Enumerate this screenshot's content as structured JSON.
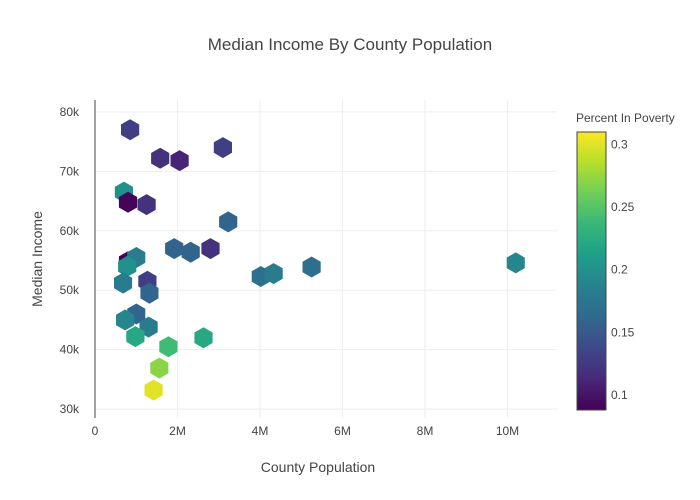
{
  "chart_data": {
    "type": "scatter",
    "title": "Median Income By County Population",
    "xlabel": "County Population",
    "ylabel": "Median Income",
    "xlim": [
      0,
      11200000
    ],
    "ylim": [
      28500,
      82000
    ],
    "x_ticks": [
      0,
      2000000,
      4000000,
      6000000,
      8000000,
      10000000
    ],
    "x_tick_labels": [
      "0",
      "2M",
      "4M",
      "6M",
      "8M",
      "10M"
    ],
    "y_ticks": [
      30000,
      40000,
      50000,
      60000,
      70000,
      80000
    ],
    "y_tick_labels": [
      "30k",
      "40k",
      "50k",
      "60k",
      "70k",
      "80k"
    ],
    "grid": true,
    "marker": "hexagon",
    "colorbar": {
      "title": "Percent In Poverty",
      "min": 0.088,
      "max": 0.31,
      "ticks": [
        0.1,
        0.15,
        0.2,
        0.25,
        0.3
      ],
      "tick_labels": [
        "0.1",
        "0.15",
        "0.2",
        "0.25",
        "0.3"
      ],
      "colorscale": [
        "#440154",
        "#482878",
        "#3e4989",
        "#31688e",
        "#26828e",
        "#1f9e89",
        "#35b779",
        "#6ece58",
        "#b5de2b",
        "#fde725"
      ]
    },
    "points": [
      {
        "x": 850000,
        "y": 77000,
        "poverty": 0.13
      },
      {
        "x": 1580000,
        "y": 72200,
        "poverty": 0.12
      },
      {
        "x": 2050000,
        "y": 71800,
        "poverty": 0.11
      },
      {
        "x": 3100000,
        "y": 74000,
        "poverty": 0.13
      },
      {
        "x": 700000,
        "y": 66500,
        "poverty": 0.2
      },
      {
        "x": 800000,
        "y": 64800,
        "poverty": 0.09
      },
      {
        "x": 1250000,
        "y": 64400,
        "poverty": 0.12
      },
      {
        "x": 3230000,
        "y": 61500,
        "poverty": 0.16
      },
      {
        "x": 1920000,
        "y": 57000,
        "poverty": 0.16
      },
      {
        "x": 2320000,
        "y": 56400,
        "poverty": 0.16
      },
      {
        "x": 2800000,
        "y": 57000,
        "poverty": 0.12
      },
      {
        "x": 800000,
        "y": 54800,
        "poverty": 0.09
      },
      {
        "x": 1000000,
        "y": 55500,
        "poverty": 0.18
      },
      {
        "x": 780000,
        "y": 54000,
        "poverty": 0.2
      },
      {
        "x": 680000,
        "y": 51200,
        "poverty": 0.18
      },
      {
        "x": 1270000,
        "y": 51500,
        "poverty": 0.13
      },
      {
        "x": 1320000,
        "y": 49500,
        "poverty": 0.16
      },
      {
        "x": 4020000,
        "y": 52300,
        "poverty": 0.17
      },
      {
        "x": 4330000,
        "y": 52800,
        "poverty": 0.18
      },
      {
        "x": 5250000,
        "y": 53900,
        "poverty": 0.17
      },
      {
        "x": 10200000,
        "y": 54600,
        "poverty": 0.19
      },
      {
        "x": 1000000,
        "y": 46000,
        "poverty": 0.16
      },
      {
        "x": 730000,
        "y": 45000,
        "poverty": 0.19
      },
      {
        "x": 1300000,
        "y": 43800,
        "poverty": 0.18
      },
      {
        "x": 980000,
        "y": 42200,
        "poverty": 0.22
      },
      {
        "x": 1780000,
        "y": 40500,
        "poverty": 0.24
      },
      {
        "x": 2630000,
        "y": 42000,
        "poverty": 0.22
      },
      {
        "x": 1560000,
        "y": 36900,
        "poverty": 0.27
      },
      {
        "x": 1420000,
        "y": 33200,
        "poverty": 0.3
      }
    ]
  }
}
